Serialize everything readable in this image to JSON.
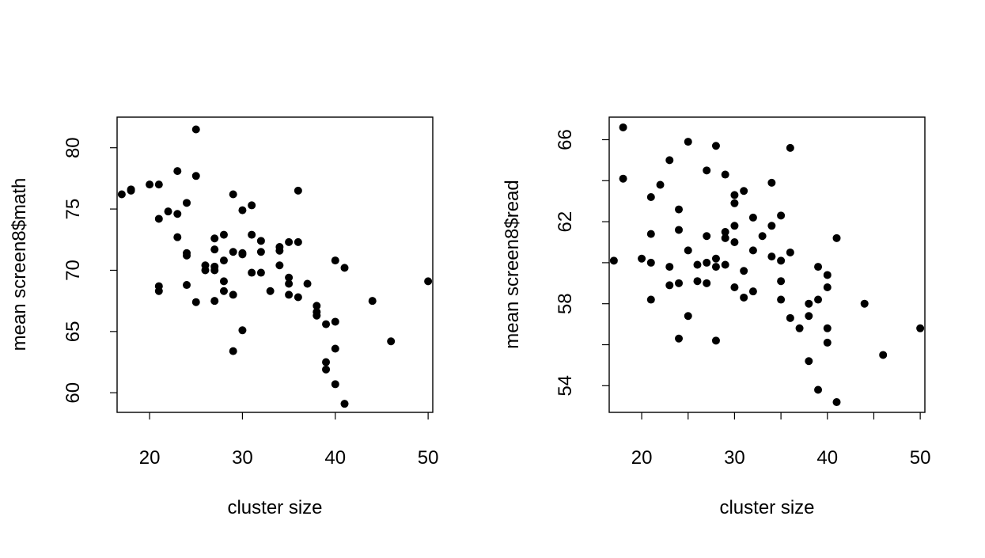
{
  "chart_data": [
    {
      "type": "scatter",
      "title": "",
      "xlabel": "cluster size",
      "ylabel": "mean screen8$math",
      "xlim": [
        16.5,
        50.5
      ],
      "ylim": [
        58.4,
        82.5
      ],
      "xticks": [
        20,
        30,
        40,
        50
      ],
      "xtick_labels": [
        "20",
        "30",
        "40",
        "50"
      ],
      "yticks": [
        60,
        65,
        70,
        75,
        80
      ],
      "ytick_labels": [
        "60",
        "65",
        "70",
        "75",
        "80"
      ],
      "grid": false,
      "legend": "none",
      "marker_color": "#000000",
      "points": [
        [
          17,
          76.2
        ],
        [
          18,
          76.5
        ],
        [
          18,
          76.6
        ],
        [
          20,
          77.0
        ],
        [
          21,
          77.0
        ],
        [
          21,
          74.2
        ],
        [
          21,
          68.7
        ],
        [
          21,
          68.3
        ],
        [
          22,
          74.8
        ],
        [
          23,
          78.1
        ],
        [
          23,
          74.6
        ],
        [
          23,
          72.7
        ],
        [
          24,
          75.5
        ],
        [
          24,
          71.4
        ],
        [
          24,
          71.2
        ],
        [
          24,
          68.8
        ],
        [
          25,
          81.5
        ],
        [
          25,
          77.7
        ],
        [
          25,
          67.4
        ],
        [
          26,
          70.4
        ],
        [
          26,
          70.0
        ],
        [
          27,
          72.6
        ],
        [
          27,
          71.7
        ],
        [
          27,
          70.3
        ],
        [
          27,
          70.0
        ],
        [
          27,
          67.5
        ],
        [
          28,
          72.9
        ],
        [
          28,
          70.8
        ],
        [
          28,
          69.1
        ],
        [
          28,
          68.3
        ],
        [
          29,
          76.2
        ],
        [
          29,
          71.5
        ],
        [
          29,
          68.0
        ],
        [
          29,
          63.4
        ],
        [
          30,
          74.9
        ],
        [
          30,
          71.4
        ],
        [
          30,
          71.3
        ],
        [
          30,
          65.1
        ],
        [
          31,
          75.3
        ],
        [
          31,
          72.9
        ],
        [
          31,
          69.8
        ],
        [
          32,
          72.4
        ],
        [
          32,
          71.5
        ],
        [
          32,
          69.8
        ],
        [
          33,
          68.3
        ],
        [
          34,
          71.9
        ],
        [
          34,
          71.6
        ],
        [
          34,
          70.4
        ],
        [
          35,
          72.3
        ],
        [
          35,
          69.4
        ],
        [
          35,
          68.9
        ],
        [
          35,
          68.0
        ],
        [
          36,
          76.5
        ],
        [
          36,
          72.3
        ],
        [
          36,
          67.8
        ],
        [
          37,
          68.9
        ],
        [
          38,
          67.1
        ],
        [
          38,
          66.6
        ],
        [
          38,
          66.3
        ],
        [
          39,
          65.6
        ],
        [
          39,
          62.5
        ],
        [
          39,
          61.9
        ],
        [
          40,
          70.8
        ],
        [
          40,
          65.8
        ],
        [
          40,
          63.6
        ],
        [
          40,
          60.7
        ],
        [
          41,
          70.2
        ],
        [
          41,
          59.1
        ],
        [
          44,
          67.5
        ],
        [
          46,
          64.2
        ],
        [
          50,
          69.1
        ]
      ]
    },
    {
      "type": "scatter",
      "title": "",
      "xlabel": "cluster size",
      "ylabel": "mean screen8$read",
      "xlim": [
        16.5,
        50.5
      ],
      "ylim": [
        52.7,
        67.1
      ],
      "xticks": [
        20,
        30,
        40,
        50
      ],
      "xtick_labels": [
        "20",
        "30",
        "40",
        "50"
      ],
      "minor_xticks": [
        25,
        35,
        45
      ],
      "yticks": [
        54,
        56,
        58,
        60,
        62,
        64,
        66
      ],
      "ytick_labels": [
        "54",
        "",
        "58",
        "",
        "62",
        "",
        "66"
      ],
      "grid": false,
      "legend": "none",
      "marker_color": "#000000",
      "points": [
        [
          17,
          60.1
        ],
        [
          18,
          66.6
        ],
        [
          18,
          64.1
        ],
        [
          20,
          60.2
        ],
        [
          21,
          63.2
        ],
        [
          21,
          61.4
        ],
        [
          21,
          60.0
        ],
        [
          21,
          58.2
        ],
        [
          22,
          63.8
        ],
        [
          23,
          65.0
        ],
        [
          23,
          59.8
        ],
        [
          23,
          58.9
        ],
        [
          24,
          62.6
        ],
        [
          24,
          61.6
        ],
        [
          24,
          59.0
        ],
        [
          24,
          56.3
        ],
        [
          25,
          65.9
        ],
        [
          25,
          60.6
        ],
        [
          25,
          57.4
        ],
        [
          26,
          59.9
        ],
        [
          26,
          59.1
        ],
        [
          27,
          64.5
        ],
        [
          27,
          61.3
        ],
        [
          27,
          60.0
        ],
        [
          27,
          59.0
        ],
        [
          28,
          65.7
        ],
        [
          28,
          60.2
        ],
        [
          28,
          59.8
        ],
        [
          28,
          56.2
        ],
        [
          29,
          64.3
        ],
        [
          29,
          61.5
        ],
        [
          29,
          61.2
        ],
        [
          29,
          59.9
        ],
        [
          30,
          63.3
        ],
        [
          30,
          62.9
        ],
        [
          30,
          61.8
        ],
        [
          30,
          61.0
        ],
        [
          30,
          58.8
        ],
        [
          31,
          63.5
        ],
        [
          31,
          59.6
        ],
        [
          31,
          58.3
        ],
        [
          32,
          62.2
        ],
        [
          32,
          60.6
        ],
        [
          32,
          58.6
        ],
        [
          33,
          61.3
        ],
        [
          34,
          63.9
        ],
        [
          34,
          61.8
        ],
        [
          34,
          60.3
        ],
        [
          35,
          62.3
        ],
        [
          35,
          60.1
        ],
        [
          35,
          59.1
        ],
        [
          35,
          58.2
        ],
        [
          36,
          65.6
        ],
        [
          36,
          60.5
        ],
        [
          36,
          57.3
        ],
        [
          37,
          56.8
        ],
        [
          38,
          58.0
        ],
        [
          38,
          57.4
        ],
        [
          38,
          55.2
        ],
        [
          39,
          59.8
        ],
        [
          39,
          58.2
        ],
        [
          39,
          53.8
        ],
        [
          40,
          59.4
        ],
        [
          40,
          58.8
        ],
        [
          40,
          56.8
        ],
        [
          40,
          56.1
        ],
        [
          41,
          61.2
        ],
        [
          41,
          53.2
        ],
        [
          44,
          58.0
        ],
        [
          46,
          55.5
        ],
        [
          50,
          56.8
        ]
      ]
    }
  ]
}
